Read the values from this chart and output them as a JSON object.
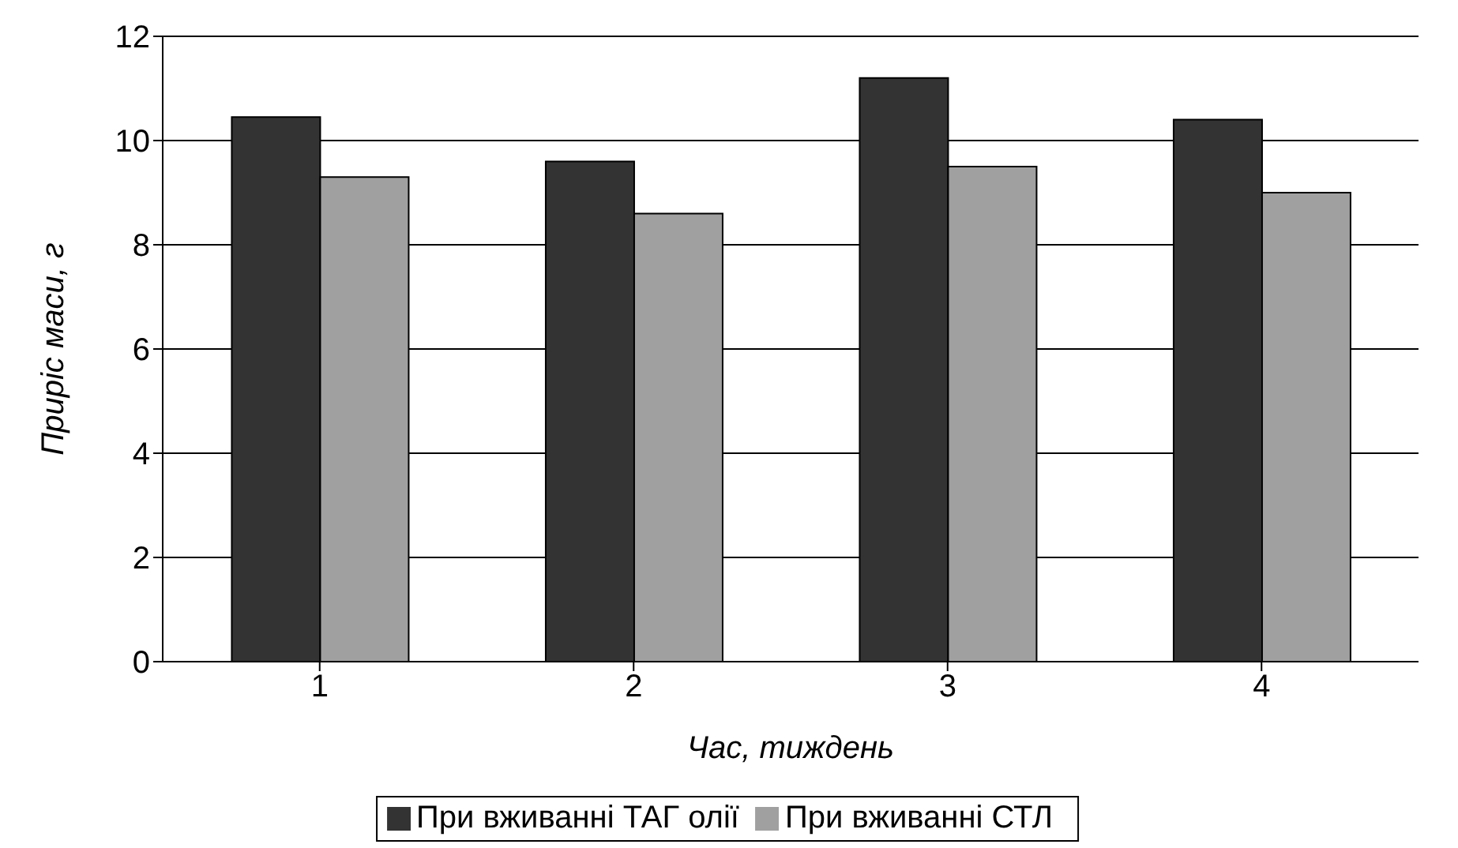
{
  "chart_data": {
    "type": "bar",
    "xlabel": "Час, тиждень",
    "ylabel": "Приріс маси, г",
    "categories": [
      "1",
      "2",
      "3",
      "4"
    ],
    "series": [
      {
        "name": "При вживанні ТАГ олії",
        "color": "#333333",
        "values": [
          10.45,
          9.6,
          11.2,
          10.4
        ]
      },
      {
        "name": "При вживанні СТЛ",
        "color": "#a0a0a0",
        "values": [
          9.3,
          8.6,
          9.5,
          9.0
        ]
      }
    ],
    "ylim": [
      0,
      12
    ],
    "yticks": [
      0,
      2,
      4,
      6,
      8,
      10,
      12
    ],
    "grid": "y",
    "legend": "bottom"
  }
}
